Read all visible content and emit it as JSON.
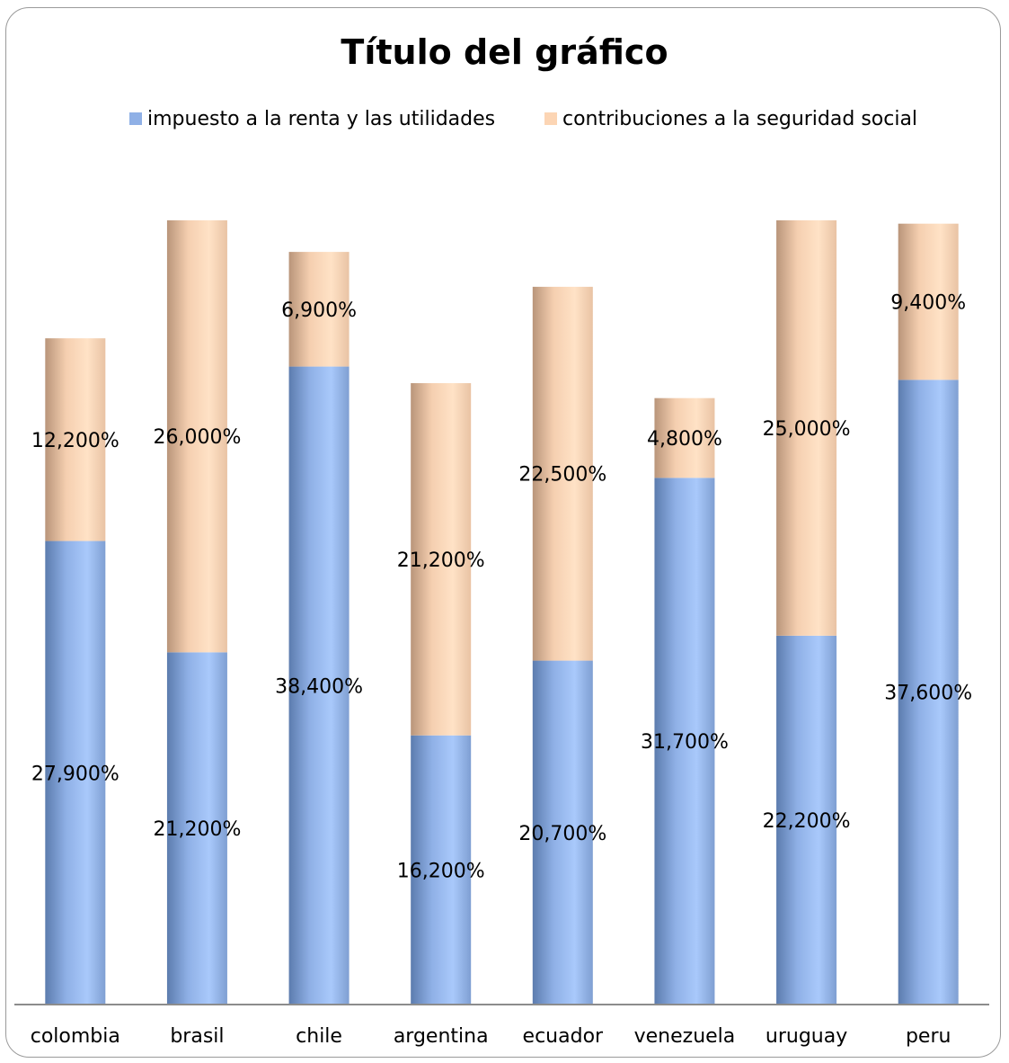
{
  "chart_data": {
    "type": "bar",
    "stacked": true,
    "title": "Título del gráfico",
    "xlabel": "",
    "ylabel": "",
    "categories": [
      "colombia",
      "brasil",
      "chile",
      "argentina",
      "ecuador",
      "venezuela",
      "uruguay",
      "peru"
    ],
    "series": [
      {
        "name": "impuesto a la renta y las utilidades",
        "color": "#8fb0e6",
        "values": [
          27.9,
          21.2,
          38.4,
          16.2,
          20.7,
          31.7,
          22.2,
          37.6
        ],
        "labels": [
          "27,900%",
          "21,200%",
          "38,400%",
          "16,200%",
          "20,700%",
          "31,700%",
          "22,200%",
          "37,600%"
        ]
      },
      {
        "name": "contribuciones a la seguridad social",
        "color": "#fcd5b4",
        "values": [
          12.2,
          26.0,
          6.9,
          21.2,
          22.5,
          4.8,
          25.0,
          9.4
        ],
        "labels": [
          "12,200%",
          "26,000%",
          "6,900%",
          "21,200%",
          "22,500%",
          "4,800%",
          "25,000%",
          "9,400%"
        ]
      }
    ],
    "ylim": [
      0,
      50
    ],
    "grid": false,
    "legend_position": "top"
  }
}
